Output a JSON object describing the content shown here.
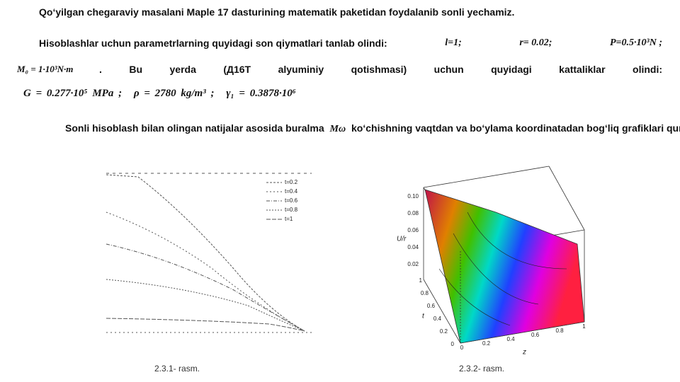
{
  "intro": "Qo‘yilgan chegaraviy masalani Maple 17 dasturining matematik paketidan foydalanib sonli yechamiz.",
  "params": {
    "lead": "Hisoblashlar uchun parametrlarning quyidagi son qiymatlari tanlab olindi:",
    "l": "l=1;",
    "r": "r= 0.02;",
    "P": "P=0.5·10³N ;",
    "M0": "M₀ = 1·10³N·m",
    "material": ". Bu yerda (Д16Т alyuminiy qotishmasi) uchun quyidagi kattaliklar olindi:"
  },
  "constants": {
    "G": "G = 0.277·10⁵ MPa ;",
    "rho": "ρ = 2780 kg/m³ ;",
    "gamma": "γ₁ = 0.3878·10⁶"
  },
  "results": {
    "start": "Sonli hisoblash bilan olingan natijalar asosida buralma",
    "symbol": "Mω",
    "end": "ko‘chishning vaqtdan va bo‘ylama koordinatadan bog‘liq grafiklari quridi"
  },
  "figure1": {
    "legend": [
      "t=0.2",
      "t=0.4",
      "t=0.6",
      "t=0.8",
      "t=1"
    ],
    "caption": "2.3.1- rasm."
  },
  "figure2": {
    "y_label": "U/r",
    "y_ticks": [
      "0.10",
      "0.08",
      "0.06",
      "0.04",
      "0.02"
    ],
    "t_label": "t",
    "t_ticks": [
      "1",
      "0.8",
      "0.6",
      "0.4",
      "0.2",
      "0"
    ],
    "z_label": "z",
    "z_ticks": [
      "0",
      "0.2",
      "0.4",
      "0.6",
      "0.8",
      "1"
    ],
    "caption": "2.3.2- rasm."
  }
}
